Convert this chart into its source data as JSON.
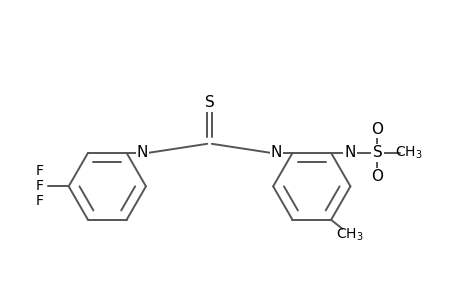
{
  "bg_color": "#ffffff",
  "line_color": "#555555",
  "line_width": 1.4,
  "font_size": 10,
  "fig_width": 4.6,
  "fig_height": 3.0,
  "dpi": 100,
  "xlim": [
    0,
    10
  ],
  "ylim": [
    -0.5,
    4.5
  ]
}
